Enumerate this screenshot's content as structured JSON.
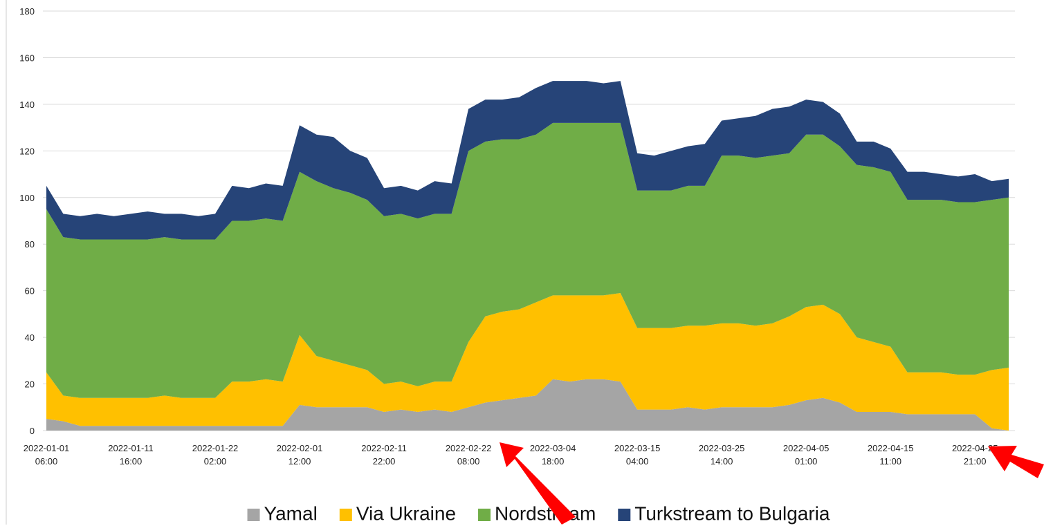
{
  "chart_data": {
    "type": "stacked_area",
    "categories": [
      "2022-01-01 06:00",
      null,
      null,
      null,
      null,
      "2022-01-11 16:00",
      null,
      null,
      null,
      null,
      "2022-01-22 02:00",
      null,
      null,
      null,
      null,
      "2022-02-01 12:00",
      null,
      null,
      null,
      null,
      "2022-02-11 22:00",
      null,
      null,
      null,
      null,
      "2022-02-22 08:00",
      null,
      null,
      null,
      null,
      "2022-03-04 18:00",
      null,
      null,
      null,
      null,
      "2022-03-15 04:00",
      null,
      null,
      null,
      null,
      "2022-03-25 14:00",
      null,
      null,
      null,
      null,
      "2022-04-05 01:00",
      null,
      null,
      null,
      null,
      "2022-04-15 11:00",
      null,
      null,
      null,
      null,
      "2022-04-25 21:00",
      null,
      null
    ],
    "series": [
      {
        "name": "Yamal",
        "color": "#a5a5a5",
        "values": [
          5,
          4,
          2,
          2,
          2,
          2,
          2,
          2,
          2,
          2,
          2,
          2,
          2,
          2,
          2,
          11,
          10,
          10,
          10,
          10,
          8,
          9,
          8,
          9,
          8,
          10,
          12,
          13,
          14,
          15,
          22,
          21,
          22,
          22,
          21,
          9,
          9,
          9,
          10,
          9,
          10,
          10,
          10,
          10,
          11,
          13,
          14,
          12,
          8,
          8,
          8,
          7,
          7,
          7,
          7,
          7,
          1,
          0
        ]
      },
      {
        "name": "Via Ukraine",
        "color": "#ffc000",
        "values": [
          20,
          11,
          12,
          12,
          12,
          12,
          12,
          13,
          12,
          12,
          12,
          19,
          19,
          20,
          19,
          30,
          22,
          20,
          18,
          16,
          12,
          12,
          11,
          12,
          13,
          28,
          37,
          38,
          38,
          40,
          36,
          37,
          36,
          36,
          38,
          35,
          35,
          35,
          35,
          36,
          36,
          36,
          35,
          36,
          38,
          40,
          40,
          38,
          32,
          30,
          28,
          18,
          18,
          18,
          17,
          17,
          25,
          27
        ]
      },
      {
        "name": "Nordstream",
        "color": "#70ad47",
        "values": [
          70,
          68,
          68,
          68,
          68,
          68,
          68,
          68,
          68,
          68,
          68,
          69,
          69,
          69,
          69,
          70,
          75,
          74,
          74,
          73,
          72,
          72,
          72,
          72,
          72,
          82,
          75,
          74,
          73,
          72,
          74,
          74,
          74,
          74,
          73,
          59,
          59,
          59,
          60,
          60,
          72,
          72,
          72,
          72,
          70,
          74,
          73,
          72,
          74,
          75,
          75,
          74,
          74,
          74,
          74,
          74,
          73,
          73
        ]
      },
      {
        "name": "Turkstream to Bulgaria",
        "color": "#264478",
        "values": [
          10,
          10,
          10,
          11,
          10,
          11,
          12,
          10,
          11,
          10,
          11,
          15,
          14,
          15,
          15,
          20,
          20,
          22,
          18,
          18,
          12,
          12,
          12,
          14,
          13,
          18,
          18,
          17,
          18,
          20,
          18,
          18,
          18,
          17,
          18,
          16,
          15,
          17,
          17,
          18,
          15,
          16,
          18,
          20,
          20,
          15,
          14,
          14,
          10,
          11,
          10,
          12,
          12,
          11,
          11,
          12,
          8,
          8
        ]
      }
    ],
    "ylim": [
      0,
      180
    ],
    "yticks": [
      0,
      20,
      40,
      60,
      80,
      100,
      120,
      140,
      160,
      180
    ],
    "grid": true,
    "legend": "bottom"
  }
}
